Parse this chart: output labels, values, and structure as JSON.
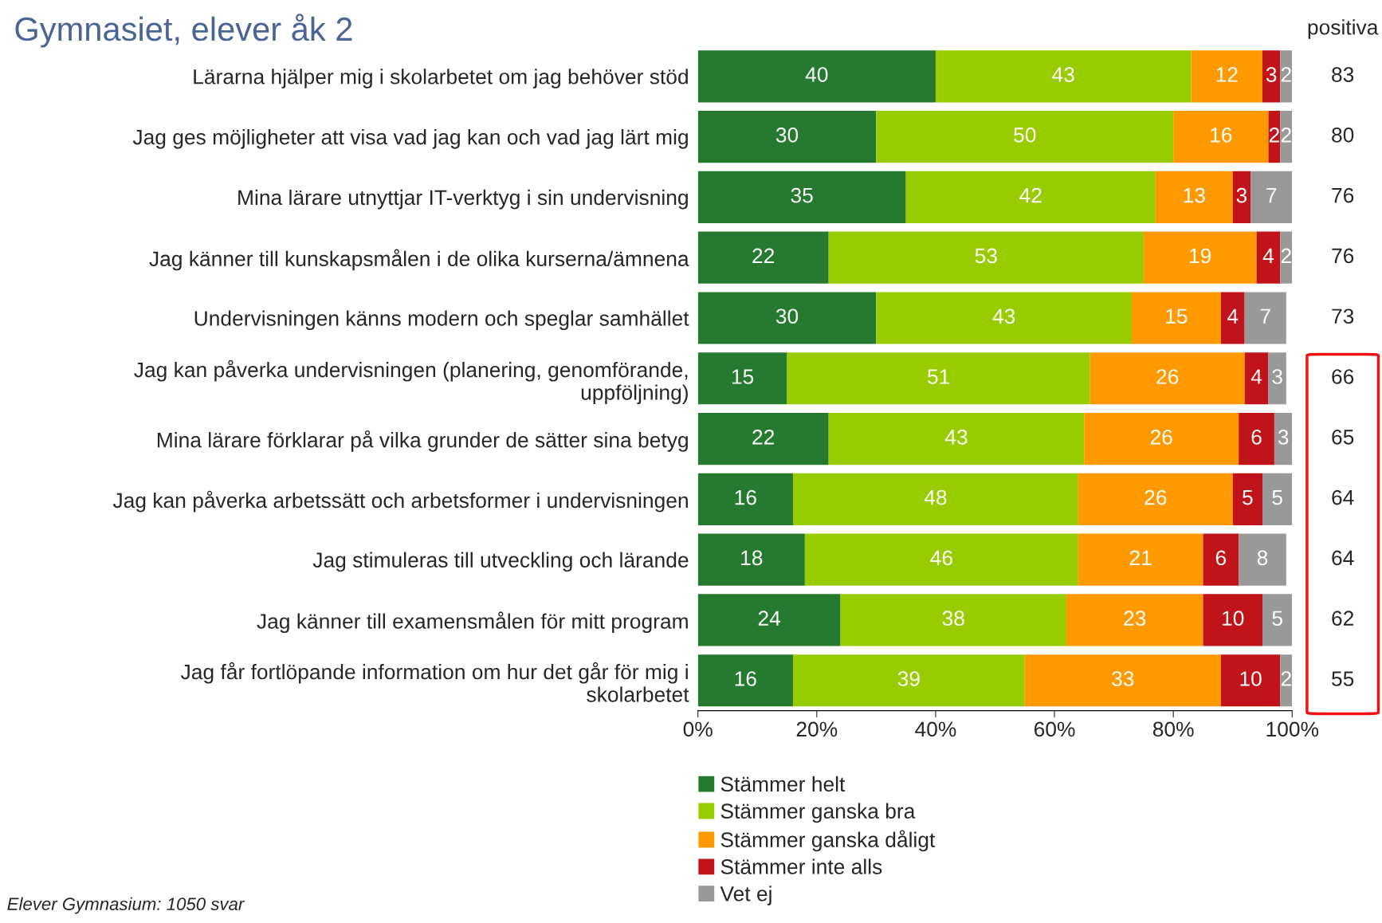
{
  "chart_data": {
    "type": "bar",
    "orientation": "horizontal",
    "stacked": true,
    "title": "Gymnasiet, elever åk 2",
    "categories": [
      "Lärarna hjälper mig i skolarbetet om jag behöver stöd",
      "Jag ges möjligheter att visa vad jag kan och vad jag lärt mig",
      "Mina lärare utnyttjar IT-verktyg i sin undervisning",
      "Jag känner till kunskapsmålen i de olika kurserna/ämnena",
      "Undervisningen känns modern och speglar samhället",
      "Jag kan påverka undervisningen (planering, genomförande,\nuppföljning)",
      "Mina lärare förklarar på vilka grunder de sätter sina betyg",
      "Jag kan påverka arbetssätt och arbetsformer i undervisningen",
      "Jag stimuleras till utveckling och lärande",
      "Jag känner till examensmålen för mitt program",
      "Jag får fortlöpande information om hur det går för mig i\nskolarbetet"
    ],
    "series": [
      {
        "name": "Stämmer helt",
        "color": "#267a2f",
        "values": [
          40,
          30,
          35,
          22,
          30,
          15,
          22,
          16,
          18,
          24,
          16
        ]
      },
      {
        "name": "Stämmer ganska bra",
        "color": "#99cc00",
        "values": [
          43,
          50,
          42,
          53,
          43,
          51,
          43,
          48,
          46,
          38,
          39
        ]
      },
      {
        "name": "Stämmer ganska dåligt",
        "color": "#ff9900",
        "values": [
          12,
          16,
          13,
          19,
          15,
          26,
          26,
          26,
          21,
          23,
          33
        ]
      },
      {
        "name": "Stämmer inte alls",
        "color": "#c0141a",
        "values": [
          3,
          2,
          3,
          4,
          4,
          4,
          6,
          5,
          6,
          10,
          10
        ]
      },
      {
        "name": "Vet ej",
        "color": "#999999",
        "values": [
          2,
          2,
          7,
          2,
          7,
          3,
          3,
          5,
          8,
          5,
          2
        ]
      }
    ],
    "xlim": [
      0,
      100
    ],
    "xticks": [
      {
        "value": 0,
        "label": "0%"
      },
      {
        "value": 20,
        "label": "20%"
      },
      {
        "value": 40,
        "label": "40%"
      },
      {
        "value": 60,
        "label": "60%"
      },
      {
        "value": 80,
        "label": "80%"
      },
      {
        "value": 100,
        "label": "100%"
      }
    ],
    "data_labels": true,
    "grid": false,
    "legend": "bottom",
    "annotations": [
      "positiva",
      "83",
      "80",
      "76",
      "76",
      "73",
      "66",
      "65",
      "64",
      "64",
      "62",
      "55",
      "Elever Gymnasium: 1050 svar"
    ]
  }
}
